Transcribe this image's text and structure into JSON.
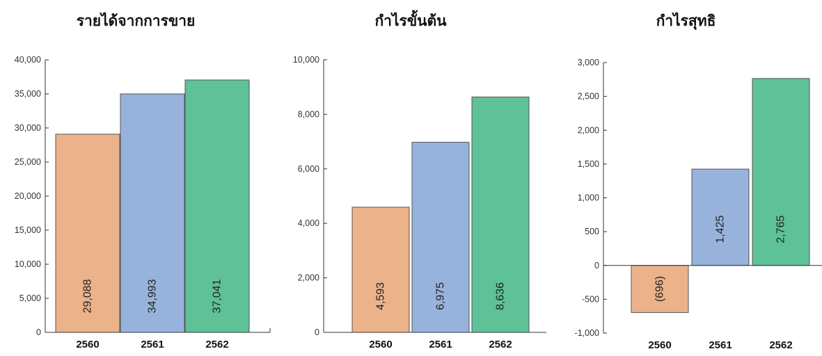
{
  "colors": {
    "2560": "#ecb28a",
    "2561": "#97b3db",
    "2562": "#5fc198"
  },
  "chart_data": [
    {
      "type": "bar",
      "title": "รายได้จากการขาย",
      "categories": [
        "2560",
        "2561",
        "2562"
      ],
      "values": [
        29088,
        34993,
        37041
      ],
      "value_labels": [
        "29,088",
        "34,993",
        "37,041"
      ],
      "ylim": [
        0,
        40000
      ],
      "yticks": [
        0,
        5000,
        10000,
        15000,
        20000,
        25000,
        30000,
        35000,
        40000
      ],
      "ytick_labels": [
        "0",
        "5,000",
        "10,000",
        "15,000",
        "20,000",
        "25,000",
        "30,000",
        "35,000",
        "40,000"
      ],
      "grid": false
    },
    {
      "type": "bar",
      "title": "กำไรขั้นต้น",
      "categories": [
        "2560",
        "2561",
        "2562"
      ],
      "values": [
        4593,
        6975,
        8636
      ],
      "value_labels": [
        "4,593",
        "6,975",
        "8,636"
      ],
      "ylim": [
        0,
        10000
      ],
      "yticks": [
        0,
        2000,
        4000,
        6000,
        8000,
        10000
      ],
      "ytick_labels": [
        "0",
        "2,000",
        "4,000",
        "6,000",
        "8,000",
        "10,000"
      ],
      "grid": false
    },
    {
      "type": "bar",
      "title": "กำไรสุทธิ",
      "categories": [
        "2560",
        "2561",
        "2562"
      ],
      "values": [
        -696,
        1425,
        2765
      ],
      "value_labels": [
        "(696)",
        "1,425",
        "2,765"
      ],
      "ylim": [
        -1000,
        3000
      ],
      "yticks": [
        -1000,
        -500,
        0,
        500,
        1000,
        1500,
        2000,
        2500,
        3000
      ],
      "ytick_labels": [
        "-1,000",
        "-500",
        "0",
        "500",
        "1,000",
        "1,500",
        "2,000",
        "2,500",
        "3,000"
      ],
      "grid": false
    }
  ]
}
